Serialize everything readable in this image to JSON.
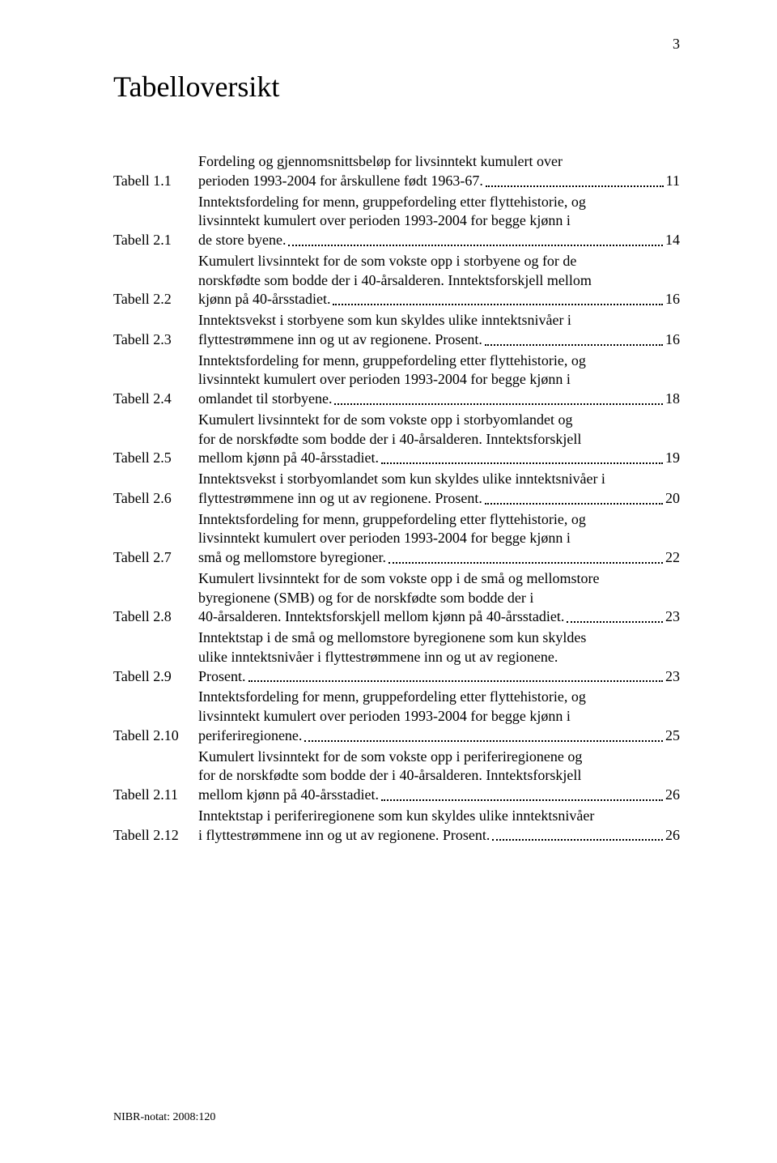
{
  "page_number": "3",
  "title": "Tabelloversikt",
  "footer": "NIBR-notat: 2008:120",
  "colors": {
    "background": "#ffffff",
    "text": "#000000",
    "leader": "#000000"
  },
  "typography": {
    "body_fontsize_pt": 13,
    "heading_fontsize_pt": 26,
    "font_family": "Garamond / serif"
  },
  "toc": [
    {
      "label": "Tabell 1.1",
      "lines": [
        "Fordeling og gjennomsnittsbeløp for livsinntekt kumulert over"
      ],
      "last": "perioden 1993-2004 for årskullene født 1963-67.",
      "page": "11"
    },
    {
      "label": "Tabell 2.1",
      "lines": [
        "Inntektsfordeling for menn, gruppefordeling etter flyttehistorie, og",
        "livsinntekt kumulert over perioden 1993-2004 for begge kjønn i"
      ],
      "last": "de store byene.",
      "page": "14"
    },
    {
      "label": "Tabell 2.2",
      "lines": [
        "Kumulert livsinntekt for de som vokste opp i storbyene og for de",
        "norskfødte som bodde der i 40-årsalderen. Inntektsforskjell mellom"
      ],
      "last": "kjønn på 40-årsstadiet.",
      "page": "16"
    },
    {
      "label": "Tabell 2.3",
      "lines": [
        "Inntektsvekst i storbyene som kun skyldes ulike inntektsnivåer i"
      ],
      "last": "flyttestrømmene inn og ut av regionene. Prosent.",
      "page": "16"
    },
    {
      "label": "Tabell 2.4",
      "lines": [
        "Inntektsfordeling for menn, gruppefordeling etter flyttehistorie, og",
        "livsinntekt kumulert over perioden 1993-2004 for begge kjønn i"
      ],
      "last": "omlandet til storbyene.",
      "page": "18"
    },
    {
      "label": "Tabell 2.5",
      "lines": [
        "Kumulert livsinntekt for de som vokste opp i storbyomlandet og",
        "for de norskfødte som bodde der i 40-årsalderen. Inntektsforskjell"
      ],
      "last": "mellom kjønn på 40-årsstadiet.",
      "page": "19"
    },
    {
      "label": "Tabell 2.6",
      "lines": [
        "Inntektsvekst i storbyomlandet som kun skyldes ulike inntektsnivåer i"
      ],
      "last": "flyttestrømmene inn og ut av regionene. Prosent.",
      "page": "20"
    },
    {
      "label": "Tabell 2.7",
      "lines": [
        "Inntektsfordeling for menn, gruppefordeling etter flyttehistorie, og",
        "livsinntekt kumulert over perioden 1993-2004 for begge kjønn i"
      ],
      "last": "små og mellomstore byregioner.",
      "page": "22"
    },
    {
      "label": "Tabell 2.8",
      "lines": [
        "Kumulert livsinntekt for de som vokste opp i de små og mellomstore",
        "byregionene (SMB) og for de norskfødte som bodde der i"
      ],
      "last": "40-årsalderen. Inntektsforskjell mellom kjønn på 40-årsstadiet.",
      "page": "23"
    },
    {
      "label": "Tabell 2.9",
      "lines": [
        "Inntektstap i de små og mellomstore byregionene som kun skyldes",
        "ulike inntektsnivåer i flyttestrømmene inn og ut av regionene."
      ],
      "last": "Prosent.",
      "page": "23"
    },
    {
      "label": "Tabell 2.10",
      "lines": [
        "Inntektsfordeling for menn, gruppefordeling etter flyttehistorie, og",
        "livsinntekt kumulert over perioden 1993-2004 for begge kjønn i"
      ],
      "last": "periferiregionene.",
      "page": "25"
    },
    {
      "label": "Tabell 2.11",
      "lines": [
        "Kumulert livsinntekt for de som vokste opp i periferiregionene og",
        "for de norskfødte som bodde der i 40-årsalderen. Inntektsforskjell"
      ],
      "last": "mellom kjønn på 40-årsstadiet.",
      "page": "26"
    },
    {
      "label": "Tabell 2.12",
      "lines": [
        "Inntektstap i periferiregionene som kun skyldes ulike inntektsnivåer"
      ],
      "last": "i flyttestrømmene inn og ut av regionene. Prosent.",
      "page": "26"
    }
  ]
}
